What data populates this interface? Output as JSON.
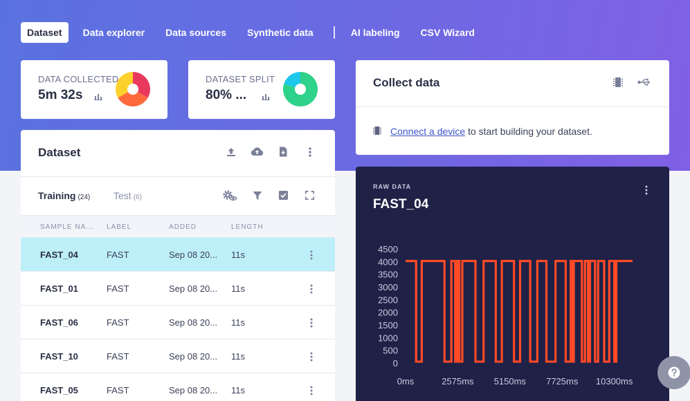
{
  "nav": {
    "items": [
      "Dataset",
      "Data explorer",
      "Data sources",
      "Synthetic data",
      "AI labeling",
      "CSV Wizard"
    ]
  },
  "stats": {
    "collected": {
      "label": "DATA COLLECTED",
      "value": "5m 32s",
      "donut_colors": [
        "#e9395d",
        "#ff6a3d",
        "#fdd12b"
      ]
    },
    "split": {
      "label": "DATASET SPLIT",
      "value": "80% ...",
      "train_fraction": 0.8,
      "donut_colors": [
        "#2ed28a",
        "#1ec8ea"
      ]
    }
  },
  "collect": {
    "title": "Collect data",
    "link_text": "Connect a device",
    "message_rest": " to start building your dataset."
  },
  "dataset": {
    "title": "Dataset",
    "tabs": [
      {
        "label": "Training",
        "count": "(24)"
      },
      {
        "label": "Test",
        "count": "(6)"
      }
    ],
    "columns": [
      "SAMPLE NA...",
      "LABEL",
      "ADDED",
      "LENGTH"
    ],
    "rows": [
      {
        "name": "FAST_04",
        "label": "FAST",
        "added": "Sep 08 20...",
        "length": "11s",
        "selected": true
      },
      {
        "name": "FAST_01",
        "label": "FAST",
        "added": "Sep 08 20...",
        "length": "11s",
        "selected": false
      },
      {
        "name": "FAST_06",
        "label": "FAST",
        "added": "Sep 08 20...",
        "length": "11s",
        "selected": false
      },
      {
        "name": "FAST_10",
        "label": "FAST",
        "added": "Sep 08 20...",
        "length": "11s",
        "selected": false
      },
      {
        "name": "FAST_05",
        "label": "FAST",
        "added": "Sep 08 20...",
        "length": "11s",
        "selected": false
      }
    ]
  },
  "raw": {
    "section_label": "RAW DATA",
    "sample_title": "FAST_04"
  },
  "chart_data": {
    "type": "line",
    "title": "FAST_04",
    "xlabel": "",
    "ylabel": "",
    "xlim": [
      0,
      11200
    ],
    "ylim": [
      0,
      4500
    ],
    "yticks": [
      0,
      500,
      1000,
      1500,
      2000,
      2500,
      3000,
      3500,
      4000,
      4500
    ],
    "xticks": [
      "0ms",
      "2575ms",
      "5150ms",
      "7725ms",
      "10300ms"
    ],
    "xtick_values": [
      0,
      2575,
      5150,
      7725,
      10300
    ],
    "grid": false,
    "series": [
      {
        "color": "#ff4a26",
        "high_value": 4050,
        "low_value": 80,
        "low_intervals": [
          [
            520,
            800
          ],
          [
            1920,
            2260
          ],
          [
            2450,
            2550
          ],
          [
            2650,
            2800
          ],
          [
            3450,
            3850
          ],
          [
            4450,
            4750
          ],
          [
            5350,
            5650
          ],
          [
            6150,
            6500
          ],
          [
            6950,
            7400
          ],
          [
            7900,
            8150
          ],
          [
            8250,
            8300
          ],
          [
            8700,
            8850
          ],
          [
            9000,
            9100
          ],
          [
            9350,
            9500
          ],
          [
            9800,
            10050
          ],
          [
            10300,
            10400
          ]
        ]
      }
    ]
  }
}
